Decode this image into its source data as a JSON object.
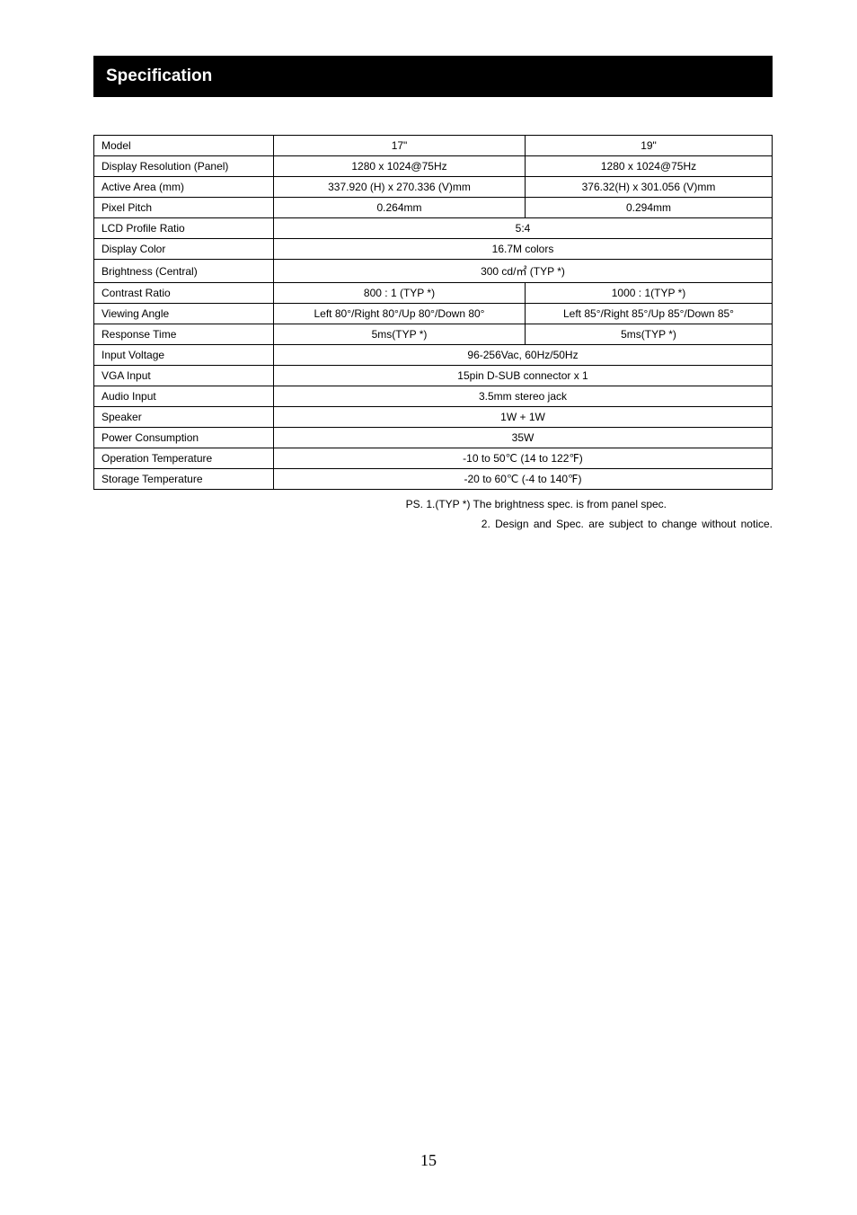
{
  "header": {
    "title": "Specification"
  },
  "table": {
    "rows": [
      {
        "label": "Model",
        "col17": "17\"",
        "col19": "19\"",
        "merged": false
      },
      {
        "label": "Display Resolution (Panel)",
        "col17": "1280 x 1024@75Hz",
        "col19": "1280 x 1024@75Hz",
        "merged": false
      },
      {
        "label": "Active Area (mm)",
        "col17": "337.920 (H) x 270.336 (V)mm",
        "col19": "376.32(H) x 301.056 (V)mm",
        "merged": false
      },
      {
        "label": "Pixel Pitch",
        "col17": "0.264mm",
        "col19": "0.294mm",
        "merged": false
      },
      {
        "label": "LCD Profile Ratio",
        "merged_value": "5:4",
        "merged": true
      },
      {
        "label": "Display Color",
        "merged_value": "16.7M colors",
        "merged": true
      },
      {
        "label": "Brightness (Central)",
        "merged_value": "300 cd/㎡  (TYP *)",
        "merged": true
      },
      {
        "label": "Contrast Ratio",
        "col17": "800 : 1 (TYP *)",
        "col19": "1000 : 1(TYP *)",
        "merged": false
      },
      {
        "label": "Viewing Angle",
        "col17": "Left 80°/Right 80°/Up 80°/Down 80°",
        "col19": "Left 85°/Right 85°/Up 85°/Down 85°",
        "merged": false
      },
      {
        "label": "Response Time",
        "col17": "5ms(TYP *)",
        "col19": "5ms(TYP *)",
        "merged": false
      },
      {
        "label": "Input Voltage",
        "merged_value": "96-256Vac, 60Hz/50Hz",
        "merged": true
      },
      {
        "label": "VGA Input",
        "merged_value": "15pin D-SUB connector x 1",
        "merged": true
      },
      {
        "label": "Audio Input",
        "merged_value": "3.5mm stereo jack",
        "merged": true
      },
      {
        "label": "Speaker",
        "merged_value": "1W + 1W",
        "merged": true
      },
      {
        "label": "Power Consumption",
        "merged_value": "35W",
        "merged": true
      },
      {
        "label": "Operation Temperature",
        "merged_value": "-10 to 50℃  (14 to 122℉)",
        "merged": true
      },
      {
        "label": "Storage Temperature",
        "merged_value": "-20 to 60℃  (-4 to 140℉)",
        "merged": true
      }
    ]
  },
  "footnotes": {
    "line1": "PS. 1.(TYP *) The brightness spec. is from panel spec.",
    "line2": "2.  Design  and  Spec.  are  subject  to  change  without  notice."
  },
  "page_number": "15"
}
